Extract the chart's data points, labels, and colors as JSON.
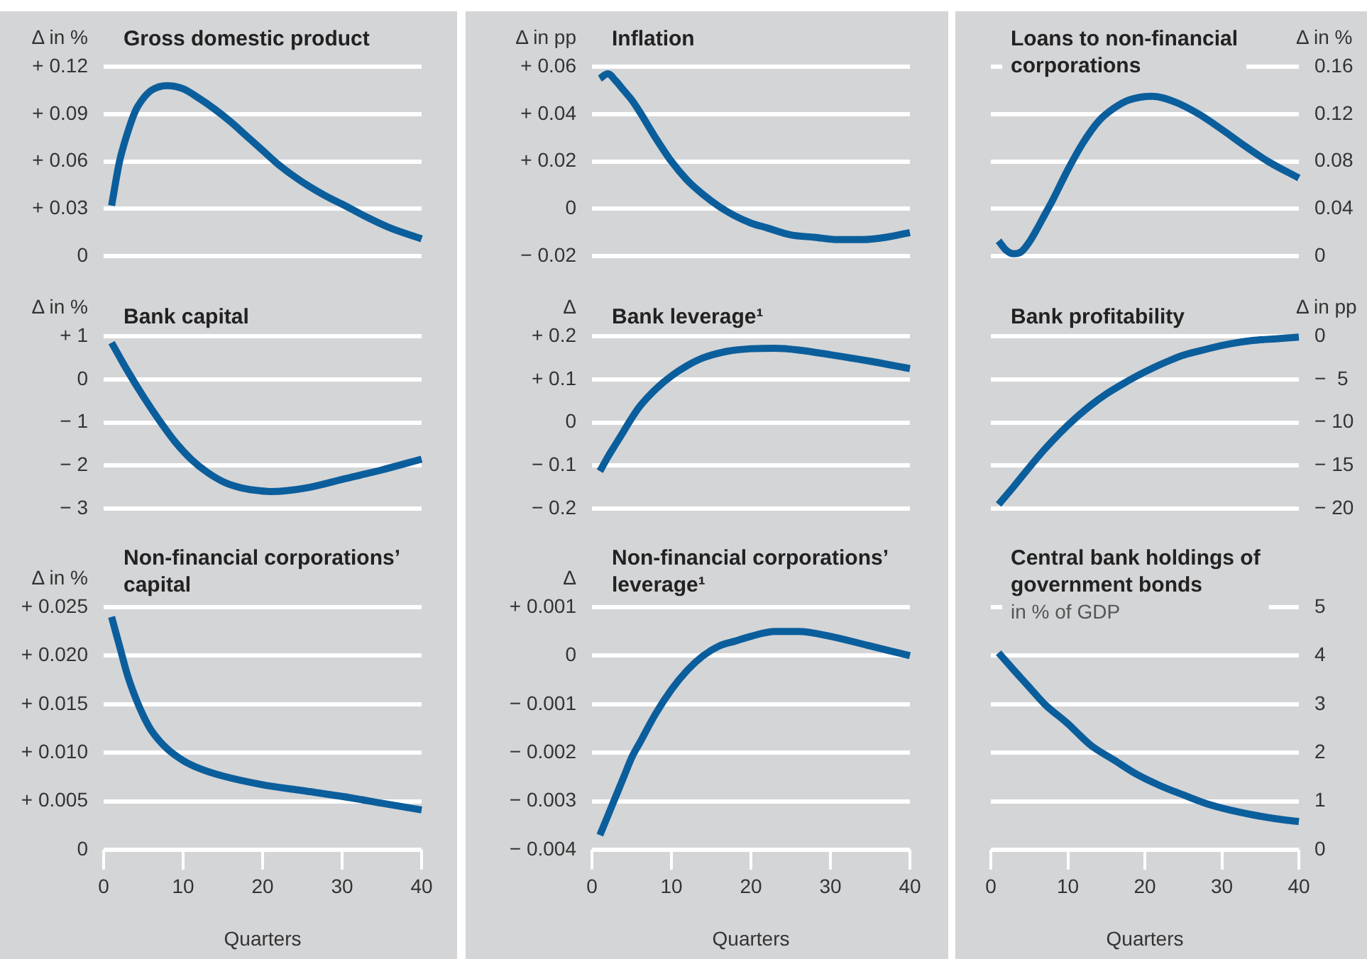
{
  "chart_data": [
    {
      "type": "line",
      "title": "Gross domestic product",
      "ylabel": "Δ in %",
      "x": [
        1,
        2,
        3,
        4,
        5,
        6,
        8,
        10,
        12,
        14,
        16,
        18,
        20,
        22,
        25,
        28,
        30,
        33,
        36,
        40
      ],
      "series": [
        {
          "color": "#0b5e9c",
          "values": [
            0.032,
            0.06,
            0.078,
            0.092,
            0.1,
            0.105,
            0.108,
            0.106,
            0.1,
            0.093,
            0.085,
            0.076,
            0.067,
            0.058,
            0.047,
            0.038,
            0.033,
            0.025,
            0.018,
            0.011
          ]
        }
      ],
      "xlim": [
        0,
        40
      ],
      "ylim": [
        0,
        0.12
      ],
      "yticks": [
        {
          "value": 0,
          "label": "0"
        },
        {
          "value": 0.03,
          "label": "+ 0.03"
        },
        {
          "value": 0.06,
          "label": "+ 0.06"
        },
        {
          "value": 0.09,
          "label": "+ 0.09"
        },
        {
          "value": 0.12,
          "label": "+ 0.12"
        }
      ],
      "grid": "y",
      "legend": false,
      "marker": "none",
      "tick_labels": "y"
    },
    {
      "type": "line",
      "title": "Inflation",
      "ylabel": "Δ in pp",
      "x": [
        1,
        2,
        3,
        4,
        5,
        6,
        8,
        10,
        12,
        14,
        16,
        18,
        20,
        22,
        25,
        28,
        31,
        34,
        37,
        40
      ],
      "series": [
        {
          "color": "#0b5e9c",
          "values": [
            0.055,
            0.057,
            0.054,
            0.05,
            0.046,
            0.041,
            0.03,
            0.02,
            0.012,
            0.006,
            0.001,
            -0.003,
            -0.006,
            -0.008,
            -0.011,
            -0.012,
            -0.013,
            -0.013,
            -0.012,
            -0.01
          ]
        }
      ],
      "xlim": [
        0,
        40
      ],
      "ylim": [
        -0.02,
        0.06
      ],
      "yticks": [
        {
          "value": -0.02,
          "label": "− 0.02"
        },
        {
          "value": 0,
          "label": "0"
        },
        {
          "value": 0.02,
          "label": "+ 0.02"
        },
        {
          "value": 0.04,
          "label": "+ 0.04"
        },
        {
          "value": 0.06,
          "label": "+ 0.06"
        }
      ],
      "grid": "y",
      "legend": false,
      "marker": "none",
      "tick_labels": "y"
    },
    {
      "type": "line",
      "title": "Loans to non-financial corporations",
      "y2label": "Δ in %",
      "x": [
        1,
        2,
        3,
        4,
        5,
        6,
        7,
        8,
        10,
        12,
        14,
        16,
        18,
        21,
        24,
        27,
        30,
        33,
        36,
        40
      ],
      "series": [
        {
          "color": "#0b5e9c",
          "axis": "y2",
          "values": [
            0.013,
            0.005,
            0.002,
            0.004,
            0.012,
            0.023,
            0.035,
            0.047,
            0.073,
            0.096,
            0.114,
            0.125,
            0.132,
            0.135,
            0.13,
            0.12,
            0.107,
            0.093,
            0.08,
            0.066
          ]
        }
      ],
      "xlim": [
        0,
        40
      ],
      "y2lim": [
        0,
        0.16
      ],
      "y2ticks": [
        0,
        0.04,
        0.08,
        0.12,
        0.16
      ],
      "grid": "y",
      "legend": false,
      "marker": "none",
      "tick_labels": "y"
    },
    {
      "type": "line",
      "title": "Bank capital",
      "ylabel": "Δ in %",
      "x": [
        1,
        3,
        5,
        7,
        9,
        11,
        13,
        15,
        17,
        19,
        21,
        23,
        26,
        30,
        35,
        40
      ],
      "series": [
        {
          "color": "#0b5e9c",
          "values": [
            0.85,
            0.2,
            -0.4,
            -0.95,
            -1.45,
            -1.85,
            -2.15,
            -2.37,
            -2.5,
            -2.57,
            -2.6,
            -2.58,
            -2.5,
            -2.32,
            -2.1,
            -1.85
          ]
        }
      ],
      "xlim": [
        0,
        40
      ],
      "ylim": [
        -3,
        1
      ],
      "yticks": [
        {
          "value": -3,
          "label": "− 3"
        },
        {
          "value": -2,
          "label": "− 2"
        },
        {
          "value": -1,
          "label": "− 1"
        },
        {
          "value": 0,
          "label": "0"
        },
        {
          "value": 1,
          "label": "+ 1"
        }
      ],
      "grid": "y",
      "legend": false,
      "marker": "none",
      "tick_labels": "y"
    },
    {
      "type": "line",
      "title": "Bank leverage¹",
      "ylabel": "Δ",
      "x": [
        1,
        2,
        3,
        4,
        5,
        6,
        8,
        10,
        12,
        14,
        17,
        20,
        23,
        26,
        30,
        35,
        40
      ],
      "series": [
        {
          "color": "#0b5e9c",
          "values": [
            -0.113,
            -0.08,
            -0.05,
            -0.02,
            0.01,
            0.037,
            0.077,
            0.108,
            0.132,
            0.15,
            0.165,
            0.171,
            0.172,
            0.168,
            0.157,
            0.142,
            0.125
          ]
        }
      ],
      "xlim": [
        0,
        40
      ],
      "ylim": [
        -0.2,
        0.2
      ],
      "yticks": [
        {
          "value": -0.2,
          "label": "− 0.2"
        },
        {
          "value": -0.1,
          "label": "− 0.1"
        },
        {
          "value": 0,
          "label": "0"
        },
        {
          "value": 0.1,
          "label": "+ 0.1"
        },
        {
          "value": 0.2,
          "label": "+ 0.2"
        }
      ],
      "grid": "y",
      "legend": false,
      "marker": "none",
      "tick_labels": "y"
    },
    {
      "type": "line",
      "title": "Bank profitability",
      "y2label": "Δ in pp",
      "x": [
        1,
        3,
        5,
        7,
        9,
        11,
        13,
        15,
        17,
        19,
        21,
        23,
        25,
        28,
        31,
        34,
        37,
        40
      ],
      "series": [
        {
          "color": "#0b5e9c",
          "axis": "y2",
          "values": [
            -19.5,
            -17.4,
            -15.2,
            -13.1,
            -11.2,
            -9.5,
            -8,
            -6.7,
            -5.6,
            -4.6,
            -3.7,
            -2.9,
            -2.2,
            -1.5,
            -0.9,
            -0.5,
            -0.3,
            -0.1
          ]
        }
      ],
      "xlim": [
        0,
        40
      ],
      "y2lim": [
        -20,
        0
      ],
      "y2ticks": [
        {
          "value": -20,
          "label": "− 20"
        },
        {
          "value": -15,
          "label": "− 15"
        },
        {
          "value": -10,
          "label": "− 10"
        },
        {
          "value": -5,
          "label": "−  5"
        },
        0
      ],
      "grid": "y",
      "legend": false,
      "marker": "none",
      "tick_labels": "y"
    },
    {
      "type": "line",
      "title": "Non-financial corporations’ capital",
      "ylabel": "Δ in %",
      "xlabel": "Quarters",
      "x": [
        1,
        2,
        3,
        4,
        5,
        6,
        8,
        10,
        12,
        15,
        20,
        25,
        30,
        35,
        40
      ],
      "series": [
        {
          "color": "#0b5e9c",
          "values": [
            0.024,
            0.021,
            0.018,
            0.0157,
            0.0138,
            0.0123,
            0.0104,
            0.0092,
            0.0084,
            0.0076,
            0.0067,
            0.0061,
            0.0055,
            0.0048,
            0.0041
          ]
        }
      ],
      "xlim": [
        0,
        40
      ],
      "xticks": [
        0,
        10,
        20,
        30,
        40
      ],
      "ylim": [
        0,
        0.025
      ],
      "yticks": [
        {
          "value": 0,
          "label": "0"
        },
        {
          "value": 0.005,
          "label": "+ 0.005"
        },
        {
          "value": 0.01,
          "label": "+ 0.010"
        },
        {
          "value": 0.015,
          "label": "+ 0.015"
        },
        {
          "value": 0.02,
          "label": "+ 0.020"
        },
        {
          "value": 0.025,
          "label": "+ 0.025"
        }
      ],
      "grid": "y",
      "legend": false,
      "marker": "none"
    },
    {
      "type": "line",
      "title": "Non-financial corporations’ leverage¹",
      "ylabel": "Δ",
      "xlabel": "Quarters",
      "x": [
        1,
        2,
        3,
        4,
        5,
        6,
        8,
        10,
        12,
        14,
        16,
        18,
        20,
        23,
        26,
        30,
        35,
        40
      ],
      "series": [
        {
          "color": "#0b5e9c",
          "values": [
            -0.0037,
            -0.0033,
            -0.0029,
            -0.0025,
            -0.0021,
            -0.0018,
            -0.0012,
            -0.0007,
            -0.0003,
            0,
            0.0002,
            0.0003,
            0.0004,
            0.0005,
            0.0005,
            0.0004,
            0.0002,
            0
          ]
        }
      ],
      "xlim": [
        0,
        40
      ],
      "xticks": [
        0,
        10,
        20,
        30,
        40
      ],
      "ylim": [
        -0.004,
        0.001
      ],
      "yticks": [
        {
          "value": -0.004,
          "label": "− 0.004"
        },
        {
          "value": -0.003,
          "label": "− 0.003"
        },
        {
          "value": -0.002,
          "label": "− 0.002"
        },
        {
          "value": -0.001,
          "label": "− 0.001"
        },
        {
          "value": 0,
          "label": "0"
        },
        {
          "value": 0.001,
          "label": "+ 0.001"
        }
      ],
      "grid": "y",
      "legend": false,
      "marker": "none"
    },
    {
      "type": "line",
      "title": "Central bank holdings of government bonds",
      "subtitle": "in % of GDP",
      "xlabel": "Quarters",
      "x": [
        1,
        3,
        5,
        7,
        10,
        13,
        16,
        19,
        22,
        25,
        28,
        31,
        34,
        37,
        40
      ],
      "series": [
        {
          "color": "#0b5e9c",
          "axis": "y2",
          "values": [
            4.06,
            3.7,
            3.35,
            3.0,
            2.6,
            2.15,
            1.85,
            1.55,
            1.32,
            1.13,
            0.95,
            0.82,
            0.72,
            0.64,
            0.58
          ]
        }
      ],
      "xlim": [
        0,
        40
      ],
      "xticks": [
        0,
        10,
        20,
        30,
        40
      ],
      "y2lim": [
        0,
        5
      ],
      "y2ticks": [
        0,
        1,
        2,
        3,
        4,
        5
      ],
      "grid": "y",
      "legend": false,
      "marker": "none"
    }
  ]
}
